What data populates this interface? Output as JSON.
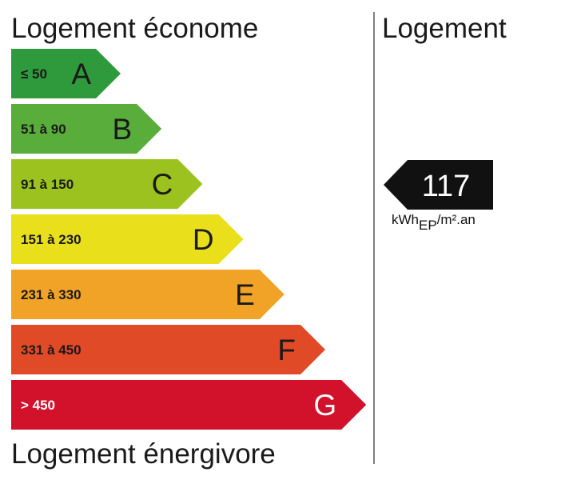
{
  "header": {
    "title_top": "Logement économe",
    "title_bottom": "Logement énergivore",
    "column_title": "Logement"
  },
  "classes": [
    {
      "range": "≤ 50",
      "letter": "A",
      "color": "#2f9a3c",
      "text_color": "#1a1a1a"
    },
    {
      "range": "51 à 90",
      "letter": "B",
      "color": "#58ad3b",
      "text_color": "#1a1a1a"
    },
    {
      "range": "91 à 150",
      "letter": "C",
      "color": "#9cc21f",
      "text_color": "#1a1a1a"
    },
    {
      "range": "151 à 230",
      "letter": "D",
      "color": "#e9df1b",
      "text_color": "#1a1a1a"
    },
    {
      "range": "231 à 330",
      "letter": "E",
      "color": "#f0a326",
      "text_color": "#1a1a1a"
    },
    {
      "range": "331 à 450",
      "letter": "F",
      "color": "#e04a27",
      "text_color": "#1a1a1a"
    },
    {
      "range": "> 450",
      "letter": "G",
      "color": "#d2112a",
      "text_color": "#ffffff"
    }
  ],
  "current": {
    "value": 117,
    "unit": {
      "base": "kWh",
      "subscript": "EP",
      "suffix": "/m².an"
    }
  }
}
